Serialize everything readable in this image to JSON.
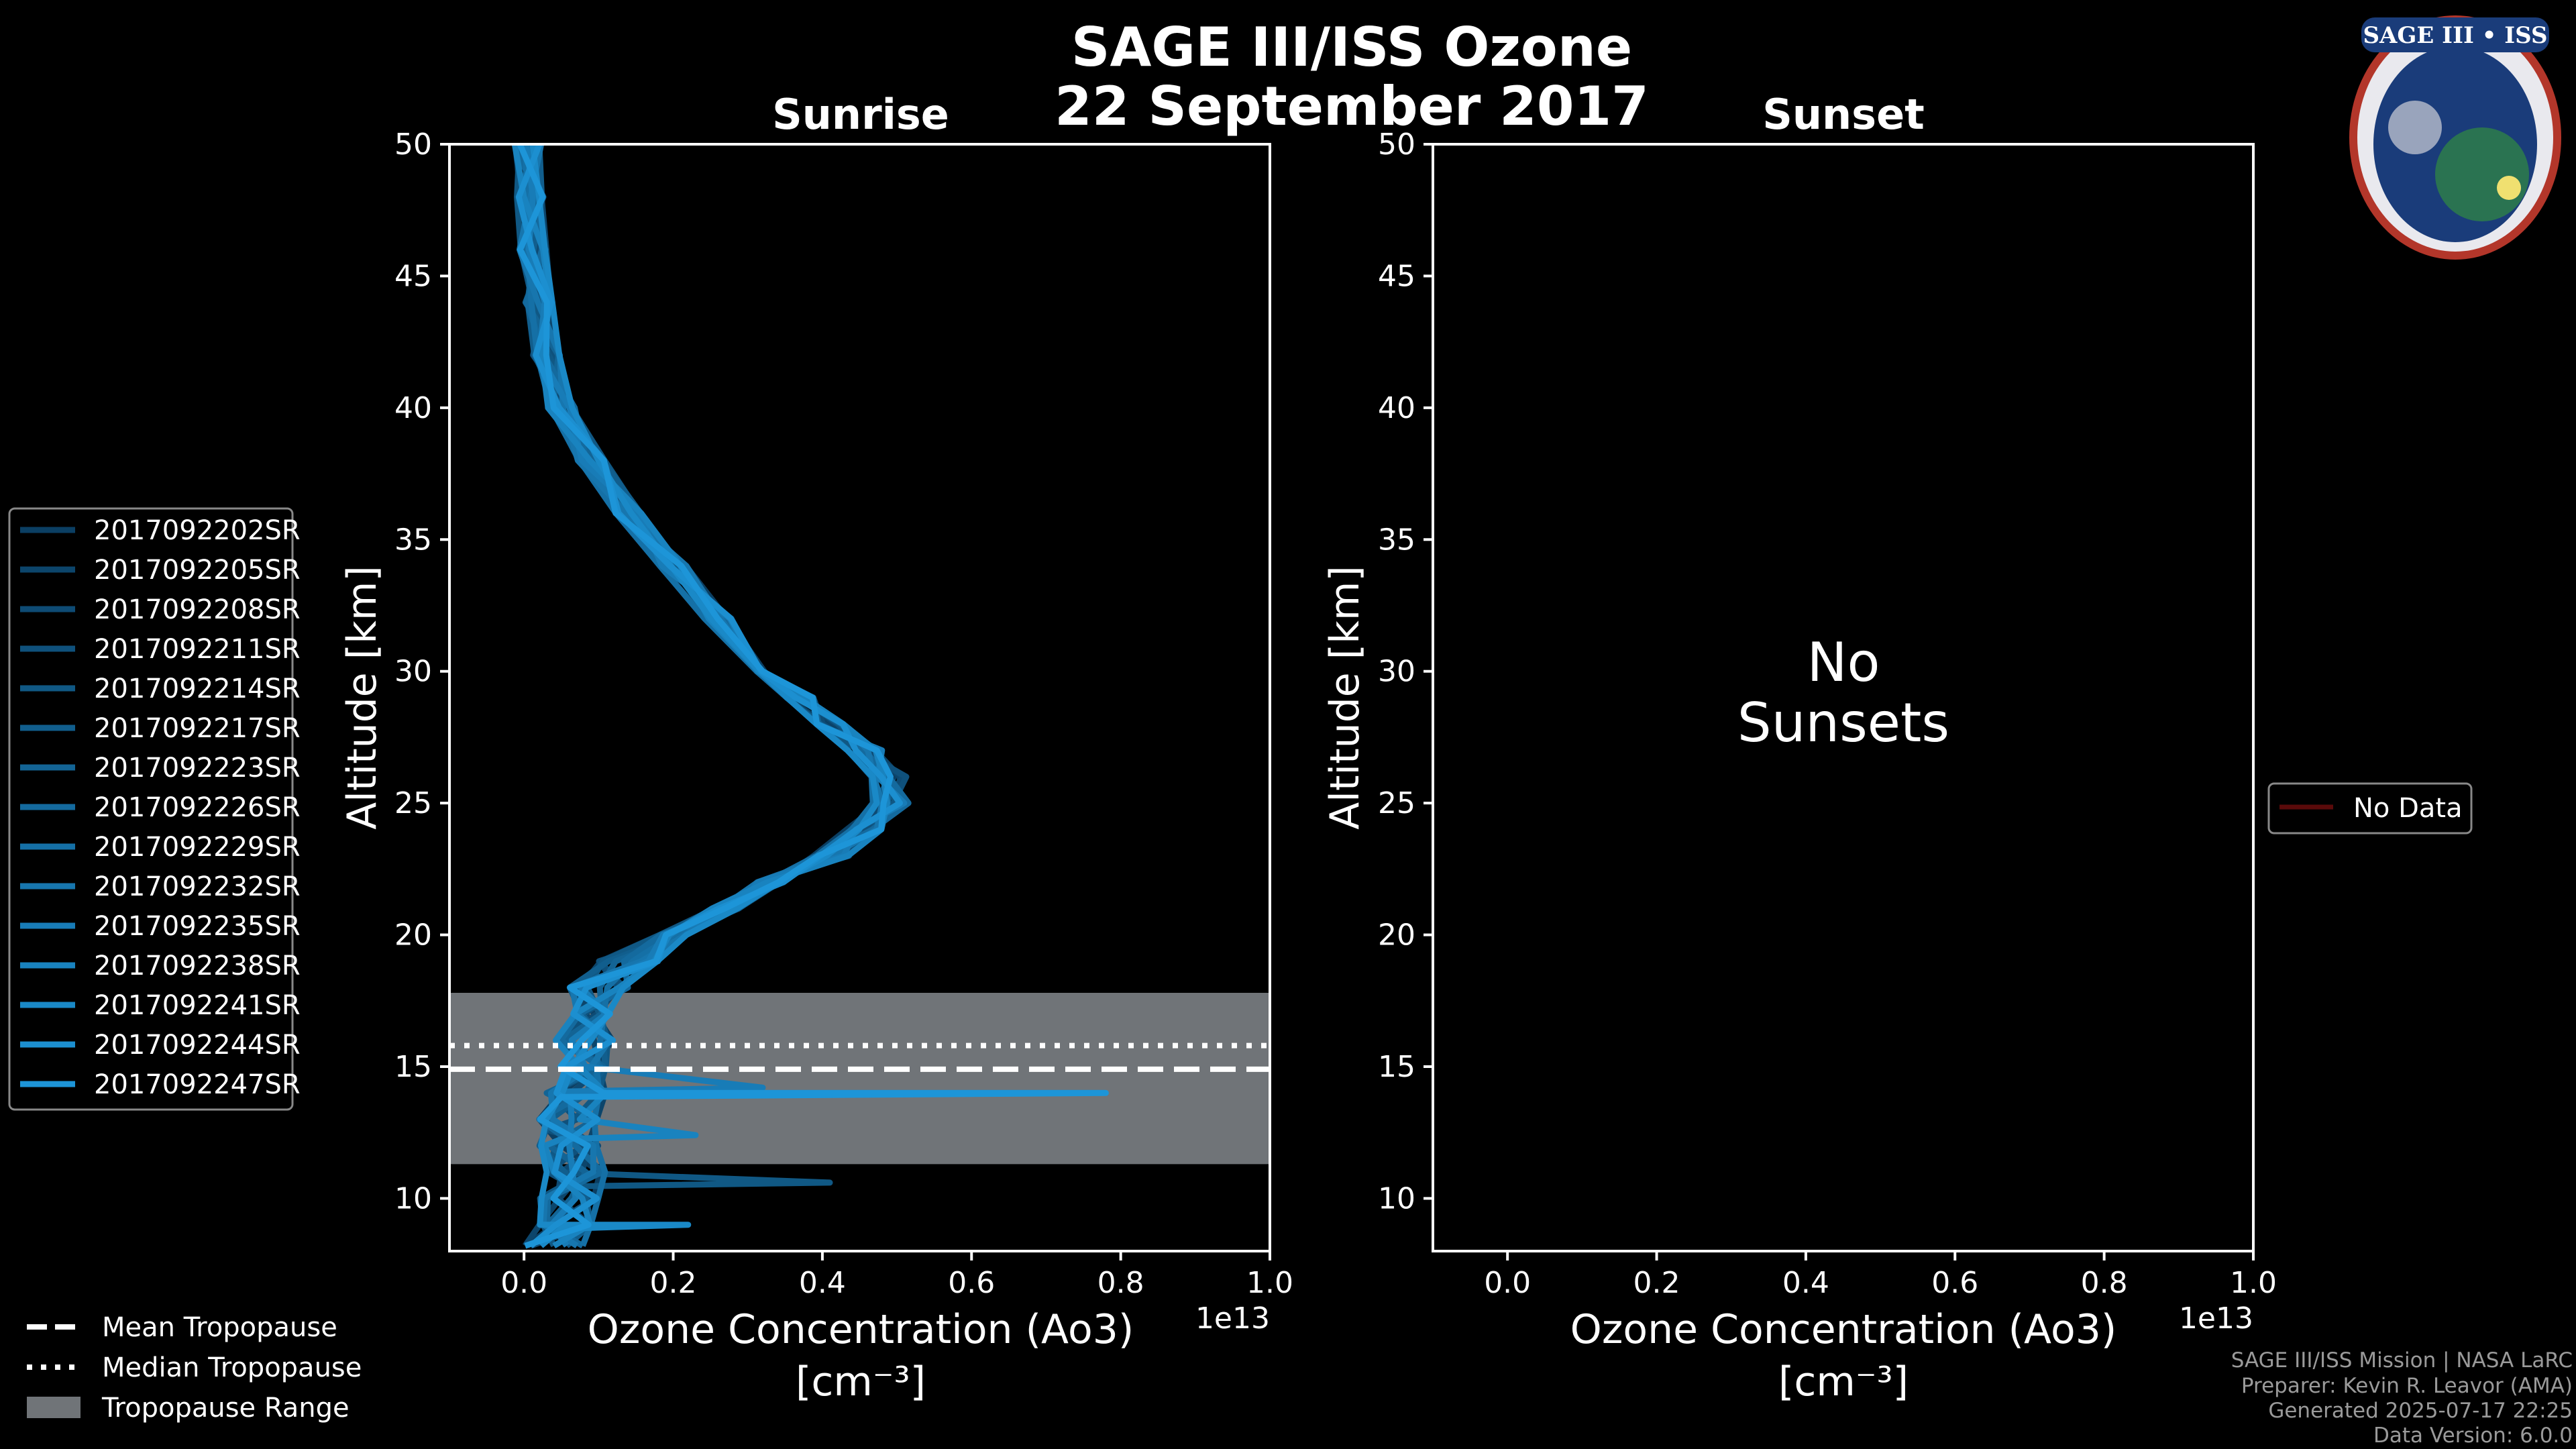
{
  "colors": {
    "background": "#000000",
    "axes": "#ffffff",
    "band": "#707478",
    "series_dark": "#0b3f63",
    "series_light": "#1d95d8",
    "no_data": "#5a0a0a"
  },
  "figure": {
    "title_line1": "SAGE III/ISS Ozone",
    "title_line2": "22 September 2017",
    "logo_text": "SAGE III • ISS",
    "footer": [
      "SAGE III/ISS Mission | NASA LaRC",
      "Preparer: Kevin R. Leavor (AMA)",
      "Generated 2025-07-17 22:25",
      "Data Version: 6.0.0"
    ]
  },
  "chart_data": [
    {
      "type": "line",
      "title": "Sunrise",
      "xlabel_line1": "Ozone Concentration (Ao3)",
      "xlabel_line2": "[cm⁻³]",
      "x_multiplier": "1e13",
      "ylabel": "Altitude [km]",
      "xlim": [
        -0.1,
        1.0
      ],
      "ylim": [
        8,
        50
      ],
      "xticks": [
        "0.0",
        "0.2",
        "0.4",
        "0.6",
        "0.8",
        "1.0"
      ],
      "xtick_values": [
        0.0,
        0.2,
        0.4,
        0.6,
        0.8,
        1.0
      ],
      "yticks": [
        "10",
        "15",
        "20",
        "25",
        "30",
        "35",
        "40",
        "45",
        "50"
      ],
      "ytick_values": [
        10,
        15,
        20,
        25,
        30,
        35,
        40,
        45,
        50
      ],
      "tropopause": {
        "mean": 14.9,
        "median": 15.8,
        "range": [
          11.3,
          17.8
        ]
      },
      "base_profile": {
        "altitude": [
          50,
          48,
          46,
          44,
          42,
          40,
          38,
          36,
          34,
          32,
          30,
          29,
          28,
          27,
          26,
          25,
          24,
          23,
          22,
          21,
          20,
          19,
          18,
          17,
          16,
          15,
          14,
          13,
          12,
          11,
          10,
          9,
          8.2
        ],
        "ozone": [
          0.005,
          0.008,
          0.012,
          0.02,
          0.03,
          0.05,
          0.09,
          0.14,
          0.2,
          0.26,
          0.33,
          0.37,
          0.41,
          0.45,
          0.48,
          0.48,
          0.45,
          0.4,
          0.33,
          0.27,
          0.2,
          0.14,
          0.1,
          0.09,
          0.08,
          0.07,
          0.07,
          0.06,
          0.06,
          0.07,
          0.06,
          0.05,
          0.04
        ]
      },
      "series": [
        {
          "name": "2017092202SR",
          "spike": null
        },
        {
          "name": "2017092205SR",
          "spike": null
        },
        {
          "name": "2017092208SR",
          "spike": null
        },
        {
          "name": "2017092211SR",
          "spike": {
            "altitude": 12.6,
            "ozone": 0.03
          }
        },
        {
          "name": "2017092214SR",
          "spike": {
            "altitude": 10.6,
            "ozone": 0.41
          }
        },
        {
          "name": "2017092217SR",
          "spike": null
        },
        {
          "name": "2017092223SR",
          "spike": null
        },
        {
          "name": "2017092226SR",
          "spike": null
        },
        {
          "name": "2017092229SR",
          "spike": null
        },
        {
          "name": "2017092232SR",
          "spike": null
        },
        {
          "name": "2017092235SR",
          "spike": {
            "altitude": 14.2,
            "ozone": 0.32
          }
        },
        {
          "name": "2017092238SR",
          "spike": {
            "altitude": 12.4,
            "ozone": 0.23
          }
        },
        {
          "name": "2017092241SR",
          "spike": {
            "altitude": 9.0,
            "ozone": 0.22
          }
        },
        {
          "name": "2017092244SR",
          "spike": null
        },
        {
          "name": "2017092247SR",
          "spike": {
            "altitude": 14.0,
            "ozone": 0.78
          }
        }
      ],
      "legend_extra": [
        "Mean Tropopause",
        "Median Tropopause",
        "Tropopause Range"
      ]
    },
    {
      "type": "line",
      "title": "Sunset",
      "xlabel_line1": "Ozone Concentration (Ao3)",
      "xlabel_line2": "[cm⁻³]",
      "x_multiplier": "1e13",
      "ylabel": "Altitude [km]",
      "xlim": [
        -0.1,
        1.0
      ],
      "ylim": [
        8,
        50
      ],
      "xticks": [
        "0.0",
        "0.2",
        "0.4",
        "0.6",
        "0.8",
        "1.0"
      ],
      "xtick_values": [
        0.0,
        0.2,
        0.4,
        0.6,
        0.8,
        1.0
      ],
      "yticks": [
        "10",
        "15",
        "20",
        "25",
        "30",
        "35",
        "40",
        "45",
        "50"
      ],
      "ytick_values": [
        10,
        15,
        20,
        25,
        30,
        35,
        40,
        45,
        50
      ],
      "message_line1": "No",
      "message_line2": "Sunsets",
      "series": [],
      "legend": [
        "No Data"
      ]
    }
  ]
}
